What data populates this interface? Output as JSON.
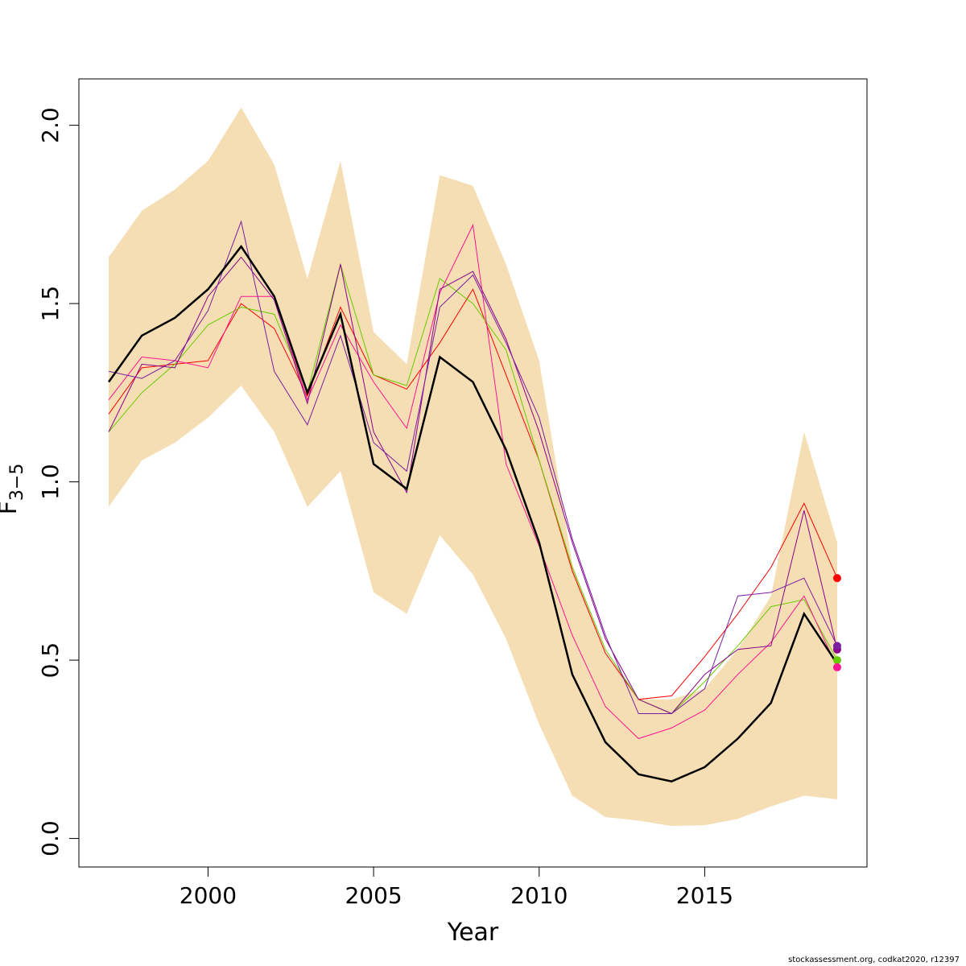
{
  "chart_data": {
    "type": "line",
    "xlabel": "Year",
    "ylabel_main": "F",
    "ylabel_sub": "3−5",
    "xlim": [
      1996.1,
      2019.9
    ],
    "ylim": [
      -0.08,
      2.13
    ],
    "x_ticks": [
      2000,
      2005,
      2010,
      2015
    ],
    "y_ticks": [
      0.0,
      0.5,
      1.0,
      1.5,
      2.0
    ],
    "y_tick_labels": [
      "0.0",
      "0.5",
      "1.0",
      "1.5",
      "2.0"
    ],
    "years": [
      1997,
      1998,
      1999,
      2000,
      2001,
      2002,
      2003,
      2004,
      2005,
      2006,
      2007,
      2008,
      2009,
      2010,
      2011,
      2012,
      2013,
      2014,
      2015,
      2016,
      2017,
      2018,
      2019
    ],
    "band_color": "#f5deb3",
    "band_lower": [
      0.93,
      1.06,
      1.11,
      1.18,
      1.27,
      1.14,
      0.93,
      1.03,
      0.69,
      0.63,
      0.85,
      0.74,
      0.56,
      0.32,
      0.12,
      0.06,
      0.05,
      0.035,
      0.037,
      0.055,
      0.09,
      0.12,
      0.11
    ],
    "band_upper": [
      1.63,
      1.76,
      1.82,
      1.9,
      2.05,
      1.89,
      1.57,
      1.9,
      1.42,
      1.33,
      1.86,
      1.83,
      1.61,
      1.34,
      0.77,
      0.52,
      0.39,
      0.39,
      0.42,
      0.53,
      0.68,
      1.14,
      0.83
    ],
    "series": [
      {
        "color": "#000000",
        "width": 2.5,
        "values": [
          1.28,
          1.41,
          1.46,
          1.54,
          1.66,
          1.52,
          1.25,
          1.47,
          1.05,
          0.98,
          1.35,
          1.28,
          1.09,
          0.83,
          0.46,
          0.27,
          0.18,
          0.16,
          0.2,
          0.28,
          0.38,
          0.63,
          0.49
        ]
      },
      {
        "color": "#ff0000",
        "width": 1,
        "end_point": 0.73,
        "values": [
          1.19,
          1.32,
          1.33,
          1.34,
          1.5,
          1.43,
          1.24,
          1.49,
          1.3,
          1.26,
          1.39,
          1.54,
          1.3,
          1.06,
          0.75,
          0.52,
          0.39,
          0.4,
          0.51,
          0.63,
          0.76,
          0.94,
          0.73
        ]
      },
      {
        "color": "#66cc00",
        "width": 1,
        "end_point": 0.5,
        "values": [
          1.14,
          1.25,
          1.33,
          1.44,
          1.49,
          1.47,
          1.25,
          1.61,
          1.3,
          1.27,
          1.57,
          1.5,
          1.37,
          1.06,
          0.76,
          0.53,
          0.39,
          0.35,
          0.44,
          0.54,
          0.65,
          0.67,
          0.5
        ]
      },
      {
        "color": "#ff1493",
        "width": 1,
        "end_point": 0.48,
        "values": [
          1.23,
          1.35,
          1.34,
          1.32,
          1.52,
          1.52,
          1.23,
          1.44,
          1.28,
          1.15,
          1.53,
          1.72,
          1.05,
          0.82,
          0.57,
          0.37,
          0.28,
          0.31,
          0.36,
          0.46,
          0.55,
          0.68,
          0.48
        ]
      },
      {
        "color": "#8b008b",
        "width": 1,
        "end_point": 0.53,
        "values": [
          1.14,
          1.33,
          1.32,
          1.52,
          1.63,
          1.51,
          1.22,
          1.61,
          1.14,
          0.97,
          1.54,
          1.59,
          1.4,
          1.14,
          0.83,
          0.56,
          0.39,
          0.35,
          0.46,
          0.53,
          0.54,
          0.92,
          0.53
        ]
      },
      {
        "color": "#7b1fa2",
        "width": 1,
        "end_point": 0.54,
        "values": [
          1.31,
          1.29,
          1.34,
          1.48,
          1.73,
          1.31,
          1.16,
          1.41,
          1.11,
          1.03,
          1.49,
          1.58,
          1.39,
          1.18,
          0.84,
          0.57,
          0.35,
          0.35,
          0.42,
          0.68,
          0.69,
          0.73,
          0.54
        ]
      }
    ]
  },
  "footer": {
    "note": "stockassessment.org, codkat2020, r12397"
  }
}
